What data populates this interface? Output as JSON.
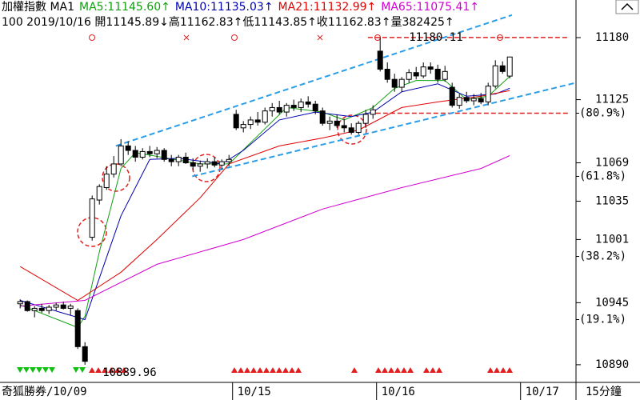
{
  "chart_data": {
    "type": "candlestick",
    "title": "加權指數 MA1",
    "info": "100 2019/10/16 開11145.89↓高11162.83↑低11143.85↑收11162.83↑量382425↑",
    "footer_left": "奇狐勝券/10/09",
    "footer_right": "15分鐘",
    "up_color": "#ffffff",
    "down_color": "#000000",
    "x": [
      0,
      1,
      2,
      3,
      4,
      5,
      6,
      7,
      8,
      9,
      10,
      11,
      12,
      13,
      14,
      15,
      16,
      17,
      18,
      19,
      20,
      21,
      22,
      23,
      24,
      25,
      26,
      27,
      28,
      29,
      30,
      31,
      32,
      33,
      34,
      35,
      36,
      37,
      38,
      39,
      40,
      41,
      42,
      43,
      44,
      45,
      46,
      47,
      48,
      49,
      50,
      51,
      52,
      53,
      54,
      55,
      56,
      57,
      58,
      59,
      60,
      61,
      62,
      63,
      64,
      65,
      66,
      67,
      68
    ],
    "open": [
      10944,
      10946,
      10938,
      10940,
      10938,
      10941,
      10943,
      10940,
      10938,
      10906,
      11003,
      11036,
      11047,
      11059,
      11068,
      11084,
      11080,
      11074,
      11079,
      11077,
      11080,
      11072,
      11070,
      11074,
      11069,
      11066,
      11068,
      11070,
      11067,
      11070,
      11112,
      11100,
      11103,
      11107,
      11105,
      11115,
      11118,
      11114,
      11120,
      11118,
      11123,
      11121,
      11115,
      11104,
      11106,
      11102,
      11100,
      11096,
      11104,
      11112,
      11168,
      11152,
      11143,
      11136,
      11143,
      11149,
      11146,
      11154,
      11152,
      11143,
      11136,
      11120,
      11127,
      11124,
      11126,
      11123,
      11137,
      11155,
      11145.89
    ],
    "high": [
      10948,
      10947,
      10942,
      10944,
      10943,
      10945,
      10946,
      10944,
      10940,
      10910,
      11040,
      11050,
      11066,
      11075,
      11090,
      11088,
      11084,
      11082,
      11084,
      11083,
      11082,
      11076,
      11076,
      11078,
      11073,
      11071,
      11073,
      11074,
      11072,
      11076,
      11116,
      11106,
      11110,
      11114,
      11118,
      11122,
      11124,
      11122,
      11125,
      11126,
      11128,
      11124,
      11118,
      11110,
      11112,
      11108,
      11104,
      11106,
      11116,
      11120,
      11180.11,
      11158,
      11148,
      11145,
      11152,
      11154,
      11158,
      11158,
      11156,
      11155,
      11140,
      11130,
      11132,
      11130,
      11131,
      11140,
      11160,
      11159,
      11162.83
    ],
    "low": [
      10940,
      10937,
      10932,
      10936,
      10935,
      10938,
      10939,
      10934,
      10904,
      10889.96,
      11000,
      11032,
      11045,
      11056,
      11066,
      11076,
      11070,
      11072,
      11074,
      11073,
      11070,
      11066,
      11066,
      11068,
      11063,
      11061,
      11064,
      11065,
      11063,
      11066,
      11098,
      11096,
      11099,
      11102,
      11103,
      11110,
      11112,
      11110,
      11115,
      11114,
      11118,
      11112,
      11102,
      11098,
      11100,
      11096,
      11094,
      11094,
      11100,
      11108,
      11150,
      11140,
      11132,
      11132,
      11140,
      11143,
      11144,
      11148,
      11140,
      11141,
      11118,
      11117,
      11122,
      11120,
      11121,
      11120,
      11135,
      11148,
      11143.85
    ],
    "close": [
      10946,
      10938,
      10940,
      10938,
      10941,
      10943,
      10940,
      10942,
      10906,
      10893,
      11037,
      11048,
      11059,
      11068,
      11084,
      11080,
      11074,
      11079,
      11077,
      11080,
      11072,
      11070,
      11074,
      11069,
      11066,
      11068,
      11070,
      11067,
      11070,
      11072,
      11100,
      11103,
      11107,
      11105,
      11115,
      11118,
      11114,
      11120,
      11118,
      11123,
      11121,
      11115,
      11104,
      11106,
      11102,
      11100,
      11096,
      11104,
      11112,
      11116,
      11152,
      11143,
      11136,
      11143,
      11149,
      11146,
      11154,
      11152,
      11143,
      11150,
      11120,
      11127,
      11124,
      11126,
      11123,
      11137,
      11155,
      11150,
      11162.83
    ],
    "series": [
      {
        "name": "MA5:11145.60↑",
        "color": "#10a010",
        "x": [
          0,
          8,
          9,
          11,
          14,
          16,
          25,
          29,
          33,
          37,
          42,
          45,
          49,
          52,
          55,
          59,
          62,
          65,
          68
        ],
        "values": [
          10943,
          10923,
          10933,
          10990,
          11064,
          11078,
          11068,
          11068,
          11093,
          11118,
          11114,
          11107,
          11118,
          11135,
          11142,
          11142,
          11125,
          11128,
          11145.6
        ]
      },
      {
        "name": "MA10:11135.03↑",
        "color": "#0000b0",
        "x": [
          0,
          9,
          14,
          18,
          22,
          28,
          31,
          36,
          41,
          46,
          49,
          53,
          58,
          62,
          66,
          68
        ],
        "values": [
          10947,
          10930,
          11022,
          11072,
          11073,
          11068,
          11080,
          11107,
          11114,
          11110,
          11114,
          11132,
          11139,
          11128,
          11130,
          11135.03
        ]
      },
      {
        "name": "MA21:11132.99↑",
        "color": "#e00000",
        "x": [
          0,
          8,
          14,
          19,
          25,
          29,
          36,
          42,
          47,
          53,
          58,
          64,
          68
        ],
        "values": [
          10977,
          10947,
          10972,
          11001,
          11038,
          11068,
          11084,
          11091,
          11098,
          11118,
          11123,
          11128,
          11132.99
        ]
      },
      {
        "name": "MA65:11075.41↑",
        "color": "#d000d0",
        "x": [
          0,
          9,
          19,
          31,
          42,
          53,
          64,
          68
        ],
        "values": [
          10942,
          10947,
          10979,
          11001,
          11028,
          11047,
          11064,
          11075.41
        ]
      }
    ],
    "trendlines": [
      {
        "color": "#2a9de8",
        "x": [
          13.3,
          68.3
        ],
        "values": [
          11084,
          11200
        ]
      },
      {
        "color": "#2a9de8",
        "x": [
          23.9,
          77.2
        ],
        "values": [
          11057,
          11140
        ]
      }
    ],
    "hlines": [
      {
        "color": "#e02020",
        "x": [
          48.3,
          76.3
        ],
        "values": [
          11180.11,
          11180.11
        ]
      },
      {
        "color": "#e02020",
        "x": [
          49.4,
          76.3
        ],
        "values": [
          11113,
          11113
        ]
      }
    ],
    "xlim": [
      -2.8,
      77.2
    ],
    "xticks": [
      {
        "value": 29.5,
        "label": "10/15"
      },
      {
        "value": 49.5,
        "label": "10/16"
      },
      {
        "value": 69.5,
        "label": "10/17"
      }
    ],
    "ylim": [
      10880,
      11202
    ],
    "yticks": [
      11180,
      11125,
      11069,
      11035,
      11001,
      10945,
      10890
    ],
    "ratio_ticks": [
      {
        "value": 11113,
        "label": "(80.9%)"
      },
      {
        "value": 11057,
        "label": "(61.8%)"
      },
      {
        "value": 10986,
        "label": "(38.2%)"
      },
      {
        "value": 10930,
        "label": "(19.1%)"
      }
    ]
  }
}
